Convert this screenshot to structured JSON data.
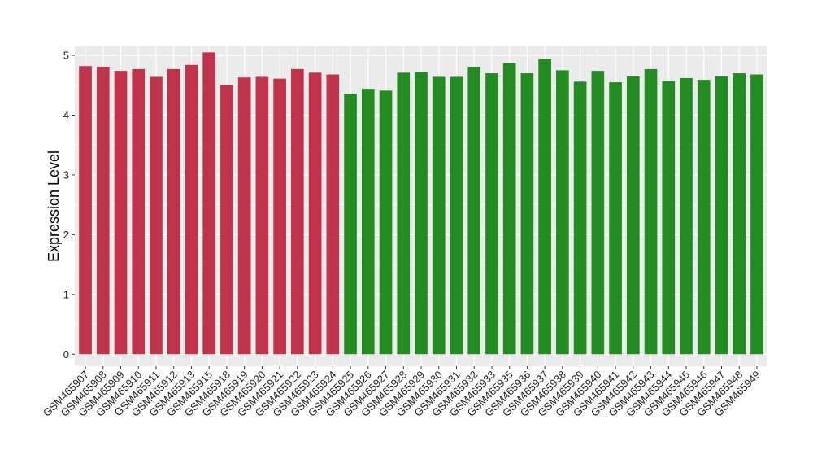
{
  "chart_data": {
    "type": "bar",
    "ylabel": "Expression Level",
    "xlabel": "",
    "ylim": [
      -0.2,
      5.15
    ],
    "yticks": [
      0,
      1,
      2,
      3,
      4,
      5
    ],
    "grid": true,
    "panel_background": "#ebebeb",
    "gridline_color": "#ffffff",
    "categories": [
      "GSM465907",
      "GSM465908",
      "GSM465909",
      "GSM465910",
      "GSM465911",
      "GSM465912",
      "GSM465913",
      "GSM465915",
      "GSM465918",
      "GSM465919",
      "GSM465920",
      "GSM465921",
      "GSM465922",
      "GSM465923",
      "GSM465924",
      "GSM465925",
      "GSM465926",
      "GSM465927",
      "GSM465928",
      "GSM465929",
      "GSM465930",
      "GSM465931",
      "GSM465932",
      "GSM465933",
      "GSM465935",
      "GSM465936",
      "GSM465937",
      "GSM465938",
      "GSM465939",
      "GSM465940",
      "GSM465941",
      "GSM465942",
      "GSM465943",
      "GSM465944",
      "GSM465945",
      "GSM465946",
      "GSM465947",
      "GSM465948",
      "GSM465949"
    ],
    "values": [
      4.82,
      4.81,
      4.74,
      4.77,
      4.64,
      4.77,
      4.84,
      5.05,
      4.51,
      4.63,
      4.64,
      4.61,
      4.77,
      4.71,
      4.68,
      4.36,
      4.44,
      4.41,
      4.71,
      4.72,
      4.64,
      4.64,
      4.81,
      4.7,
      4.87,
      4.7,
      4.94,
      4.75,
      4.56,
      4.74,
      4.55,
      4.65,
      4.77,
      4.57,
      4.62,
      4.59,
      4.65,
      4.7,
      4.68
    ],
    "group_colors": [
      "#c1334b",
      "#c1334b",
      "#c1334b",
      "#c1334b",
      "#c1334b",
      "#c1334b",
      "#c1334b",
      "#c1334b",
      "#c1334b",
      "#c1334b",
      "#c1334b",
      "#c1334b",
      "#c1334b",
      "#c1334b",
      "#c1334b",
      "#228b22",
      "#228b22",
      "#228b22",
      "#228b22",
      "#228b22",
      "#228b22",
      "#228b22",
      "#228b22",
      "#228b22",
      "#228b22",
      "#228b22",
      "#228b22",
      "#228b22",
      "#228b22",
      "#228b22",
      "#228b22",
      "#228b22",
      "#228b22",
      "#228b22",
      "#228b22",
      "#228b22",
      "#228b22",
      "#228b22",
      "#228b22"
    ]
  }
}
